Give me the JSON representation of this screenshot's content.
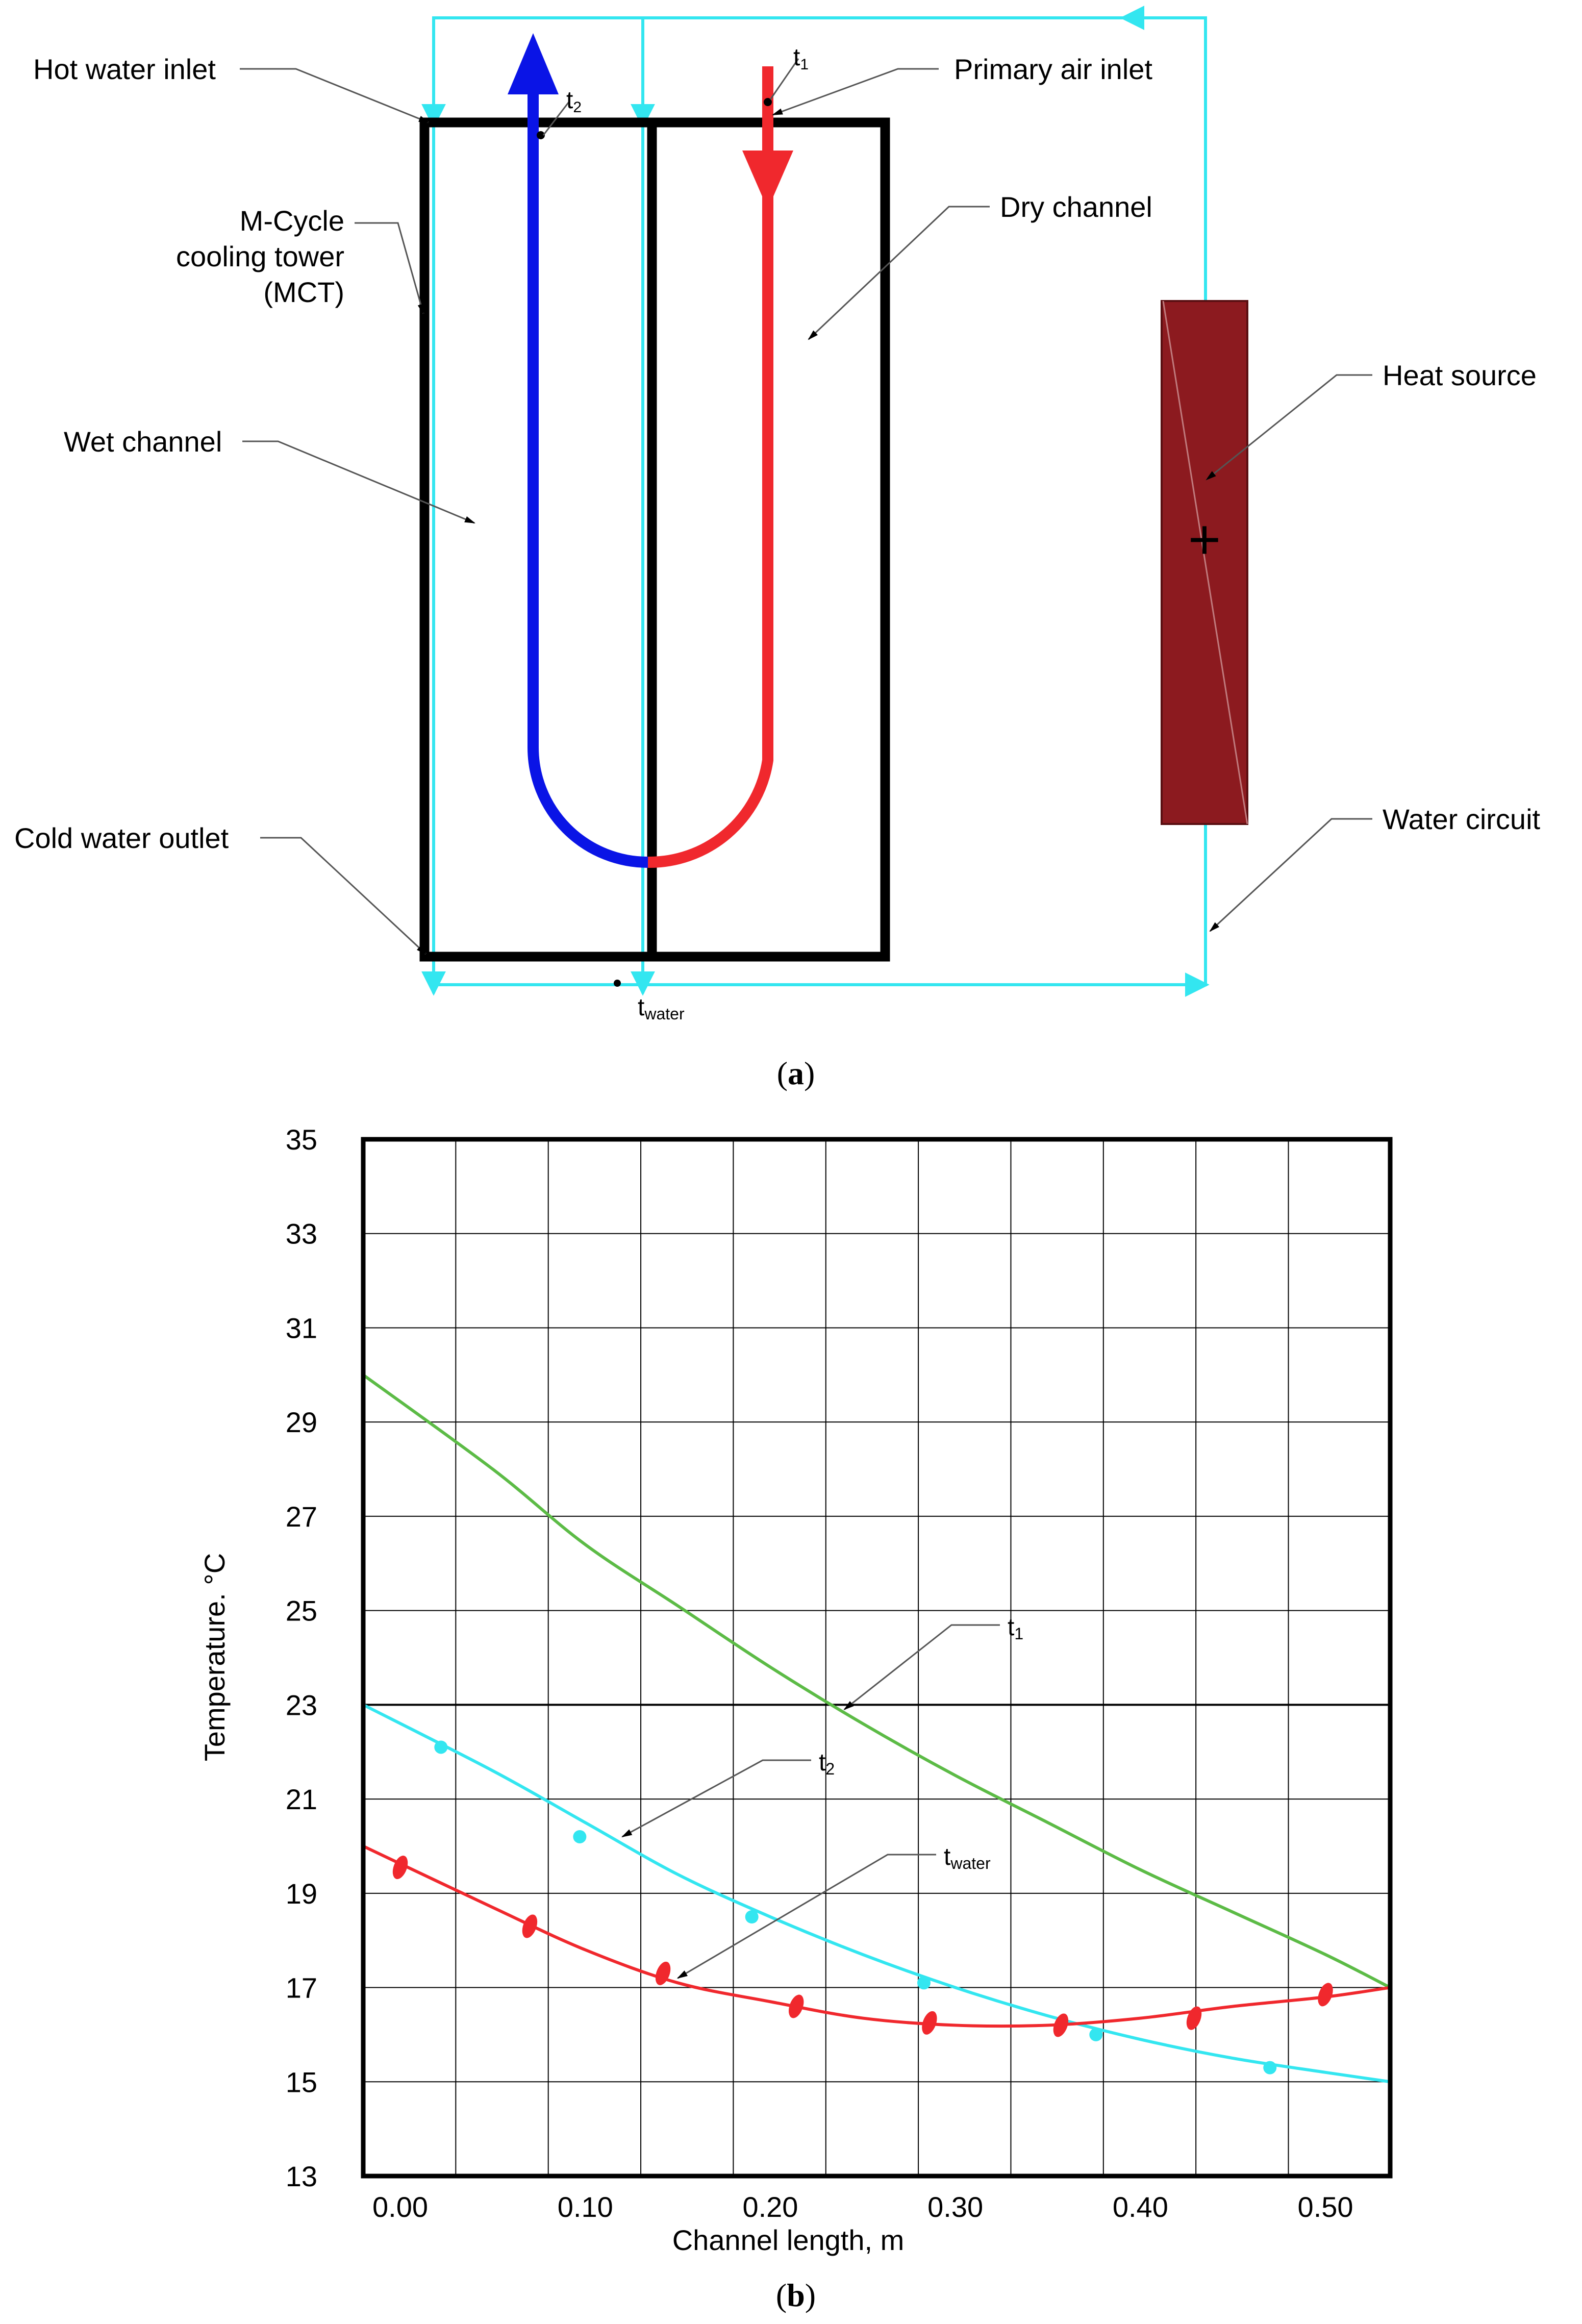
{
  "colors": {
    "black": "#000000",
    "cyan": "#33e6f0",
    "blue": "#0a14e6",
    "red": "#f0282d",
    "dark_red": "#8c1a1f",
    "green": "#5cbb46",
    "grid": "#000000",
    "leader": "#555555"
  },
  "diagram": {
    "labels": {
      "hot_water_inlet": "Hot water inlet",
      "mcycle_line1": "M-Cycle",
      "mcycle_line2": "cooling tower",
      "mcycle_line3": "(MCT)",
      "wet_channel": "Wet channel",
      "cold_water_outlet": "Cold water outlet",
      "primary_air_inlet": "Primary air inlet",
      "dry_channel": "Dry channel",
      "heat_source": "Heat source",
      "water_circuit": "Water circuit",
      "t1_base": "t",
      "t1_sub": "1",
      "t2_base": "t",
      "t2_sub": "2",
      "twater_base": "t",
      "twater_sub": "water",
      "plus": "+"
    },
    "panel_label": "a"
  },
  "chart_panel_label": "b",
  "chart_data": {
    "type": "line",
    "xlabel": "Channel length, m",
    "ylabel": "Temperature. °C",
    "xlim": [
      -0.02,
      0.535
    ],
    "ylim": [
      13,
      35
    ],
    "x_ticks": [
      0.0,
      0.1,
      0.2,
      0.3,
      0.4,
      0.5
    ],
    "x_tick_labels": [
      "0.00",
      "0.10",
      "0.20",
      "0.30",
      "0.40",
      "0.50"
    ],
    "y_ticks": [
      13,
      15,
      17,
      19,
      21,
      23,
      25,
      27,
      29,
      31,
      33,
      35
    ],
    "y_tick_labels": [
      "13",
      "15",
      "17",
      "19",
      "21",
      "23",
      "25",
      "27",
      "29",
      "31",
      "33",
      "35"
    ],
    "grid": true,
    "x_gridlines": [
      0.03,
      0.08,
      0.13,
      0.18,
      0.23,
      0.28,
      0.33,
      0.38,
      0.43,
      0.48
    ],
    "horizontal_reference": 23,
    "series": [
      {
        "name": "t1",
        "color": "#5cbb46",
        "x": [
          -0.02,
          0.05,
          0.1,
          0.15,
          0.2,
          0.25,
          0.3,
          0.35,
          0.4,
          0.45,
          0.5,
          0.535
        ],
        "y": [
          30.0,
          28.0,
          26.4,
          25.1,
          23.8,
          22.6,
          21.5,
          20.5,
          19.5,
          18.6,
          17.7,
          17.0
        ],
        "markers": []
      },
      {
        "name": "t2",
        "color": "#33e6f0",
        "x": [
          -0.02,
          0.05,
          0.1,
          0.15,
          0.2,
          0.25,
          0.3,
          0.35,
          0.4,
          0.45,
          0.5,
          0.535
        ],
        "y": [
          23.0,
          21.6,
          20.5,
          19.4,
          18.5,
          17.7,
          17.0,
          16.4,
          15.9,
          15.5,
          15.2,
          15.0
        ],
        "markers": [
          {
            "x": 0.022,
            "y": 22.1
          },
          {
            "x": 0.097,
            "y": 20.2
          },
          {
            "x": 0.19,
            "y": 18.5
          },
          {
            "x": 0.283,
            "y": 17.1
          },
          {
            "x": 0.376,
            "y": 16.0
          },
          {
            "x": 0.47,
            "y": 15.3
          }
        ]
      },
      {
        "name": "twater",
        "color": "#f0282d",
        "x": [
          -0.02,
          0.05,
          0.1,
          0.15,
          0.2,
          0.25,
          0.3,
          0.35,
          0.4,
          0.45,
          0.5,
          0.535
        ],
        "y": [
          20.0,
          18.7,
          17.8,
          17.1,
          16.7,
          16.35,
          16.2,
          16.2,
          16.35,
          16.6,
          16.8,
          17.0
        ],
        "markers": [
          {
            "x": 0.0,
            "y": 19.55
          },
          {
            "x": 0.07,
            "y": 18.3
          },
          {
            "x": 0.142,
            "y": 17.3
          },
          {
            "x": 0.214,
            "y": 16.6
          },
          {
            "x": 0.286,
            "y": 16.25
          },
          {
            "x": 0.357,
            "y": 16.2
          },
          {
            "x": 0.429,
            "y": 16.35
          },
          {
            "x": 0.5,
            "y": 16.85
          }
        ]
      }
    ],
    "annotations": [
      {
        "base": "t",
        "sub": "1",
        "target_x": 0.24,
        "target_y": 22.9
      },
      {
        "base": "t",
        "sub": "2",
        "target_x": 0.12,
        "target_y": 20.2
      },
      {
        "base": "t",
        "sub": "water",
        "target_x": 0.15,
        "target_y": 17.2
      }
    ]
  }
}
